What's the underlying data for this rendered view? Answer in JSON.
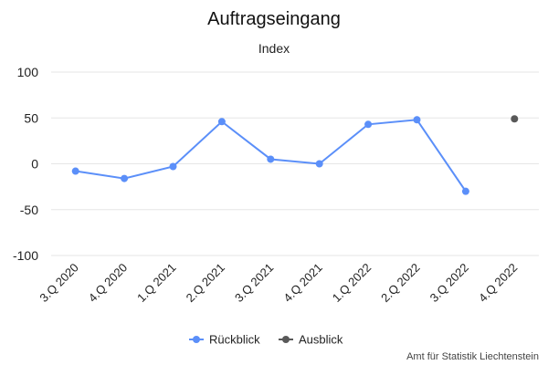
{
  "chart_data": {
    "type": "line",
    "title": "Auftragseingang",
    "subtitle": "Index",
    "categories": [
      "3.Q 2020",
      "4.Q 2020",
      "1.Q 2021",
      "2.Q 2021",
      "3.Q 2021",
      "4.Q 2021",
      "1.Q 2022",
      "2.Q 2022",
      "3.Q 2022",
      "4.Q 2022"
    ],
    "ylim": [
      -100,
      100
    ],
    "yticks": [
      100,
      50,
      0,
      -50,
      -100
    ],
    "grid": true,
    "legend_position": "bottom-center",
    "series": [
      {
        "name": "Rückblick",
        "color": "#5b8ff9",
        "values": [
          -8,
          -16,
          -3,
          46,
          5,
          0,
          43,
          48,
          -30,
          null
        ]
      },
      {
        "name": "Ausblick",
        "color": "#595959",
        "values": [
          null,
          null,
          null,
          null,
          null,
          null,
          null,
          null,
          null,
          49
        ]
      }
    ]
  },
  "credit": "Amt für Statistik Liechtenstein"
}
